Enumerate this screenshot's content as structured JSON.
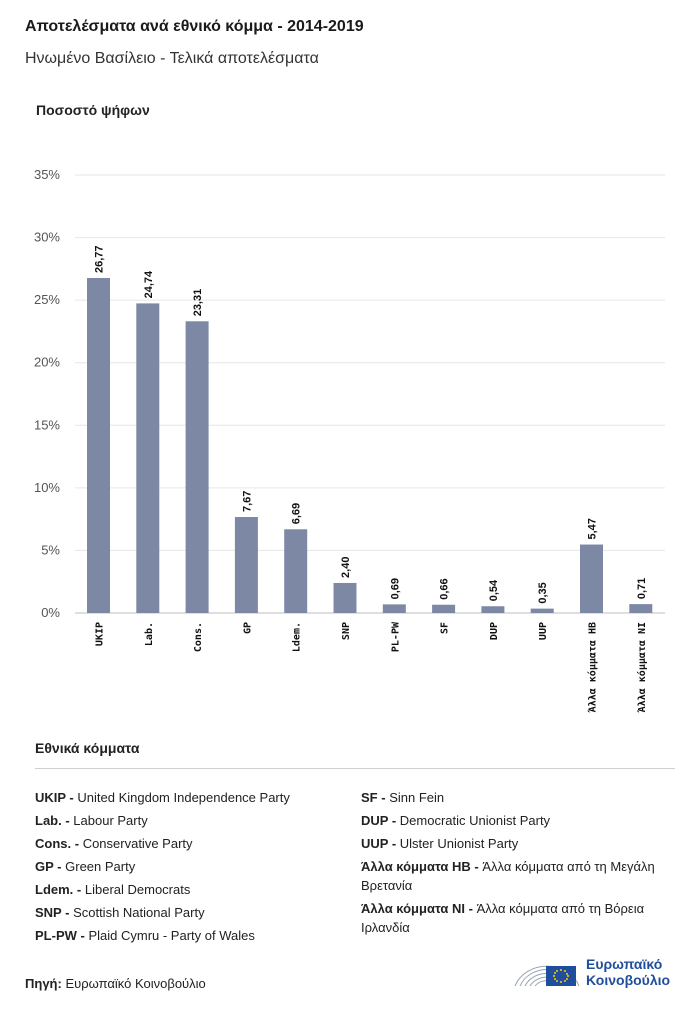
{
  "header": {
    "title": "Αποτελέσματα ανά εθνικό κόμμα - 2014-2019",
    "subtitle": "Ηνωμένο Βασίλειο - Τελικά αποτελέσματα"
  },
  "chart_data": {
    "type": "bar",
    "ylabel": "Ποσοστό ψήφων",
    "ylim": [
      0,
      35
    ],
    "yticks": [
      "0%",
      "5%",
      "10%",
      "15%",
      "20%",
      "25%",
      "30%",
      "35%"
    ],
    "grid": true,
    "categories": [
      "UKIP",
      "Lab.",
      "Cons.",
      "GP",
      "Ldem.",
      "SNP",
      "PL-PW",
      "SF",
      "DUP",
      "UUP",
      "Άλλα κόμματα HB",
      "Άλλα κόμματα NI"
    ],
    "values": [
      26.77,
      24.74,
      23.31,
      7.67,
      6.69,
      2.4,
      0.69,
      0.66,
      0.54,
      0.35,
      5.47,
      0.71
    ],
    "value_labels": [
      "26,77",
      "24,74",
      "23,31",
      "7,67",
      "6,69",
      "2,40",
      "0,69",
      "0,66",
      "0,54",
      "0,35",
      "5,47",
      "0,71"
    ],
    "bar_color": "#7d88a5"
  },
  "legend": {
    "title": "Εθνικά κόμματα",
    "left": [
      {
        "abbr": "UKIP -",
        "name": "United Kingdom Independence Party"
      },
      {
        "abbr": "Lab. -",
        "name": "Labour Party"
      },
      {
        "abbr": "Cons. -",
        "name": "Conservative Party"
      },
      {
        "abbr": "GP -",
        "name": "Green Party"
      },
      {
        "abbr": "Ldem. -",
        "name": "Liberal Democrats"
      },
      {
        "abbr": "SNP -",
        "name": "Scottish National Party"
      },
      {
        "abbr": "PL-PW -",
        "name": "Plaid Cymru - Party of Wales"
      }
    ],
    "right": [
      {
        "abbr": "SF -",
        "name": "Sinn Fein"
      },
      {
        "abbr": "DUP -",
        "name": "Democratic Unionist Party"
      },
      {
        "abbr": "UUP -",
        "name": "Ulster Unionist Party"
      },
      {
        "abbr": "Άλλα κόμματα HB -",
        "name": "Άλλα κόμματα από τη Μεγάλη Βρετανία"
      },
      {
        "abbr": "Άλλα κόμματα NI -",
        "name": "Άλλα κόμματα από τη Βόρεια Ιρλανδία"
      }
    ]
  },
  "footer": {
    "source_label": "Πηγή:",
    "source_value": "Ευρωπαϊκό Κοινοβούλιο",
    "logo_line1": "Ευρωπαϊκό",
    "logo_line2": "Κοινοβούλιο"
  },
  "colors": {
    "logo_blue": "#1f4e9c",
    "flag_gold": "#ffcc00"
  }
}
